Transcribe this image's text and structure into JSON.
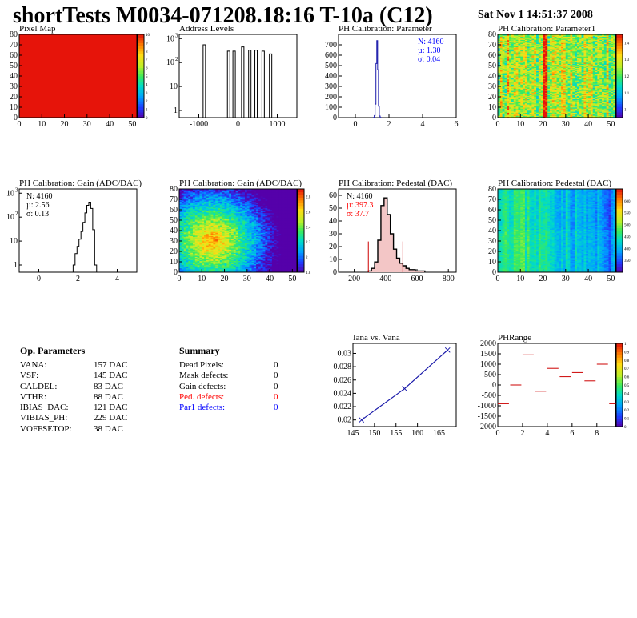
{
  "header": {
    "title": "shortTests M0034-071208.18:16 T-10a (C12)",
    "date": "Sat Nov  1 14:51:37 2008"
  },
  "panels": {
    "pixel_map": {
      "title": "Pixel Map"
    },
    "address_levels": {
      "title": "Address Levels"
    },
    "ph_par": {
      "title": "PH Calibration: Parameter",
      "stats": [
        "N: 4160",
        "µ: 1.30",
        "σ: 0.04"
      ]
    },
    "ph_par1": {
      "title": "PH Calibration: Parameter1"
    },
    "gain_hist": {
      "title": "PH Calibration: Gain (ADC/DAC)",
      "stats": [
        "N: 4160",
        "µ: 2.56",
        "σ: 0.13"
      ]
    },
    "gain_map": {
      "title": "PH Calibration: Gain (ADC/DAC)"
    },
    "ped_hist": {
      "title": "PH Calibration: Pedestal (DAC)",
      "stats": [
        "N: 4160",
        "µ: 397.3",
        "σ: 37.7"
      ]
    },
    "ped_map": {
      "title": "PH Calibration: Pedestal (DAC)"
    },
    "iana": {
      "title": "Iana vs. Vana"
    },
    "phrange": {
      "title": "PHRange"
    }
  },
  "op_params": {
    "title": "Op. Parameters",
    "rows": [
      {
        "name": "VANA:",
        "value": "157 DAC"
      },
      {
        "name": "VSF:",
        "value": "145 DAC"
      },
      {
        "name": "CALDEL:",
        "value": "83 DAC"
      },
      {
        "name": "VTHR:",
        "value": "88 DAC"
      },
      {
        "name": "IBIAS_DAC:",
        "value": "121 DAC"
      },
      {
        "name": "VIBIAS_PH:",
        "value": "229 DAC"
      },
      {
        "name": "VOFFSETOP:",
        "value": "38 DAC"
      }
    ]
  },
  "summary": {
    "title": "Summary",
    "rows": [
      {
        "name": "Dead Pixels:",
        "value": "0",
        "color": "#000000"
      },
      {
        "name": "Mask defects:",
        "value": "0",
        "color": "#000000"
      },
      {
        "name": "Gain defects:",
        "value": "0",
        "color": "#000000"
      },
      {
        "name": "Ped. defects:",
        "value": "0",
        "color": "#ff0000"
      },
      {
        "name": "Par1 defects:",
        "value": "0",
        "color": "#0000ff"
      }
    ]
  },
  "colors": {
    "blue_stats": "#0000ff",
    "red_stats": "#ff0000",
    "line_blue": "#1a1aaa",
    "phrange_red": "#cc0000"
  },
  "chart_data": [
    {
      "id": "pixel_map",
      "type": "heatmap",
      "title": "Pixel Map",
      "xlim": [
        0,
        52
      ],
      "ylim": [
        0,
        80
      ],
      "xticks": [
        0,
        10,
        20,
        30,
        40,
        50
      ],
      "yticks": [
        0,
        10,
        20,
        30,
        40,
        50,
        60,
        70,
        80
      ],
      "zlim": [
        0,
        10
      ],
      "zticks": [
        0,
        1,
        2,
        3,
        4,
        5,
        6,
        7,
        8,
        9,
        10
      ],
      "uniform_value": 10
    },
    {
      "id": "address_levels",
      "type": "bar",
      "title": "Address Levels",
      "log_y": true,
      "xlim": [
        -1500,
        1500
      ],
      "ylim": [
        0.5,
        1500
      ],
      "xticks": [
        -1000,
        0,
        1000
      ],
      "yticks": [
        1,
        10,
        100,
        1000
      ],
      "peaks": [
        {
          "x": -860,
          "y": 550
        },
        {
          "x": -240,
          "y": 300
        },
        {
          "x": -100,
          "y": 300
        },
        {
          "x": 120,
          "y": 450
        },
        {
          "x": 300,
          "y": 330
        },
        {
          "x": 460,
          "y": 330
        },
        {
          "x": 640,
          "y": 300
        },
        {
          "x": 830,
          "y": 230
        }
      ]
    },
    {
      "id": "ph_par",
      "type": "bar",
      "title": "PH Calibration: Parameter",
      "xlim": [
        -1,
        6
      ],
      "ylim": [
        0,
        800
      ],
      "xticks": [
        0,
        2,
        4,
        6
      ],
      "yticks": [
        0,
        100,
        200,
        300,
        400,
        500,
        600,
        700
      ],
      "x": [
        1.1,
        1.15,
        1.2,
        1.25,
        1.3,
        1.35,
        1.4,
        1.45,
        1.5
      ],
      "values": [
        2,
        20,
        130,
        520,
        740,
        460,
        110,
        15,
        2
      ]
    },
    {
      "id": "ph_par1",
      "type": "heatmap",
      "title": "PH Calibration: Parameter1",
      "xlim": [
        0,
        52
      ],
      "ylim": [
        0,
        80
      ],
      "xticks": [
        0,
        10,
        20,
        30,
        40,
        50
      ],
      "yticks": [
        0,
        10,
        20,
        30,
        40,
        50,
        60,
        70,
        80
      ],
      "zlim": [
        0.95,
        1.45
      ],
      "zticks": [
        1.0,
        1.1,
        1.2,
        1.3,
        1.4
      ]
    },
    {
      "id": "gain_hist",
      "type": "bar",
      "title": "PH Calibration: Gain (ADC/DAC)",
      "log_y": true,
      "xlim": [
        -1,
        5
      ],
      "ylim": [
        0.5,
        1500
      ],
      "xticks": [
        0,
        2,
        4
      ],
      "yticks": [
        1,
        10,
        100,
        1000
      ],
      "x": [
        1.8,
        1.9,
        2.0,
        2.1,
        2.2,
        2.3,
        2.4,
        2.5,
        2.6,
        2.7,
        2.8,
        2.9
      ],
      "values": [
        1,
        3,
        6,
        12,
        25,
        60,
        150,
        310,
        420,
        230,
        30,
        1
      ]
    },
    {
      "id": "gain_map",
      "type": "heatmap",
      "title": "PH Calibration: Gain (ADC/DAC)",
      "xlim": [
        0,
        52
      ],
      "ylim": [
        0,
        80
      ],
      "xticks": [
        0,
        10,
        20,
        30,
        40,
        50
      ],
      "yticks": [
        0,
        10,
        20,
        30,
        40,
        50,
        60,
        70,
        80
      ],
      "zlim": [
        1.8,
        2.9
      ],
      "zticks": [
        1.8,
        2.0,
        2.2,
        2.4,
        2.6,
        2.8
      ]
    },
    {
      "id": "ped_hist",
      "type": "bar",
      "title": "PH Calibration: Pedestal (DAC)",
      "xlim": [
        100,
        850
      ],
      "ylim": [
        0,
        65
      ],
      "xticks": [
        200,
        400,
        600,
        800
      ],
      "yticks": [
        0,
        10,
        20,
        30,
        40,
        50,
        60
      ],
      "x": [
        300,
        320,
        340,
        360,
        380,
        400,
        420,
        440,
        460,
        480,
        500,
        520,
        540,
        560,
        580,
        600,
        620,
        640
      ],
      "values": [
        1,
        3,
        8,
        25,
        52,
        58,
        45,
        30,
        18,
        11,
        7,
        5,
        3,
        2,
        2,
        1,
        1,
        1
      ],
      "cut_lines": [
        290,
        510
      ],
      "cut_height": 24
    },
    {
      "id": "ped_map",
      "type": "heatmap",
      "title": "PH Calibration: Pedestal (DAC)",
      "xlim": [
        0,
        52
      ],
      "ylim": [
        0,
        80
      ],
      "xticks": [
        0,
        10,
        20,
        30,
        40,
        50
      ],
      "yticks": [
        0,
        10,
        20,
        30,
        40,
        50,
        60,
        70,
        80
      ],
      "zlim": [
        300,
        650
      ],
      "zticks": [
        350,
        400,
        450,
        500,
        550,
        600
      ]
    },
    {
      "id": "iana",
      "type": "line",
      "title": "Iana vs. Vana",
      "xlim": [
        145,
        169
      ],
      "ylim": [
        0.019,
        0.0315
      ],
      "xticks": [
        145,
        150,
        155,
        160,
        165
      ],
      "yticks": [
        0.02,
        0.022,
        0.024,
        0.026,
        0.028,
        0.03
      ],
      "x": [
        147,
        157,
        167
      ],
      "y": [
        0.02,
        0.0247,
        0.0305
      ]
    },
    {
      "id": "phrange",
      "type": "scatter",
      "title": "PHRange",
      "xlim": [
        0,
        9.5
      ],
      "ylim": [
        -2000,
        2000
      ],
      "xticks": [
        0,
        2,
        4,
        6,
        8
      ],
      "yticks": [
        -2000,
        -1500,
        -1000,
        -500,
        0,
        500,
        1000,
        1500,
        2000
      ],
      "zlim": [
        0,
        1
      ],
      "zticks": [
        0,
        0.1,
        0.2,
        0.3,
        0.4,
        0.5,
        0.6,
        0.7,
        0.8,
        0.9,
        1
      ],
      "x": [
        0,
        1,
        2,
        3,
        4,
        5,
        6,
        7,
        8,
        9
      ],
      "y": [
        -900,
        0,
        1450,
        -300,
        800,
        400,
        600,
        200,
        1000,
        -900
      ]
    }
  ]
}
